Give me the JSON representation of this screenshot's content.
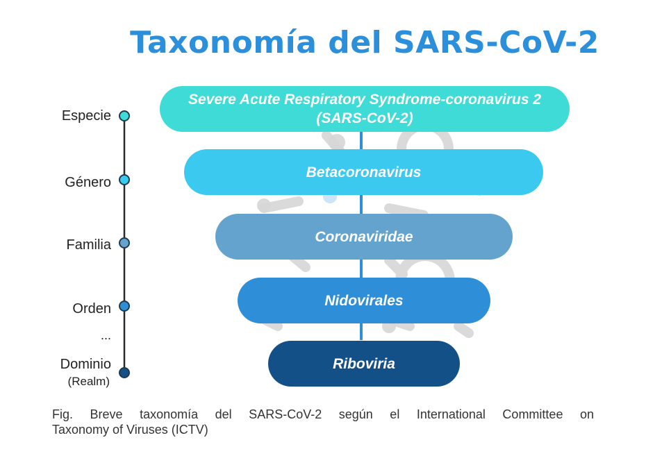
{
  "title": "Taxonomía del SARS-CoV-2",
  "ranks": [
    {
      "label": "Especie",
      "sub": ""
    },
    {
      "label": "Género",
      "sub": ""
    },
    {
      "label": "Familia",
      "sub": ""
    },
    {
      "label": "Orden",
      "sub": ""
    },
    {
      "label": "Dominio",
      "sub": "(Realm)"
    }
  ],
  "ellipsis": "...",
  "levels": [
    {
      "line1": "Severe Acute Respiratory Syndrome-coronavirus 2",
      "line2": "(SARS-CoV-2)",
      "color": "#3fdbd6"
    },
    {
      "line1": "Betacoronavirus",
      "line2": "",
      "color": "#3cc9ef"
    },
    {
      "line1": "Coronaviridae",
      "line2": "",
      "color": "#64a3cd"
    },
    {
      "line1": "Nidovirales",
      "line2": "",
      "color": "#2f8ed8"
    },
    {
      "line1": "Riboviria",
      "line2": "",
      "color": "#145088"
    }
  ],
  "caption": {
    "line1": "Fig. Breve taxonomía del SARS-CoV-2 según el International Committee on",
    "line2": "Taxonomy of Viruses (ICTV)"
  }
}
